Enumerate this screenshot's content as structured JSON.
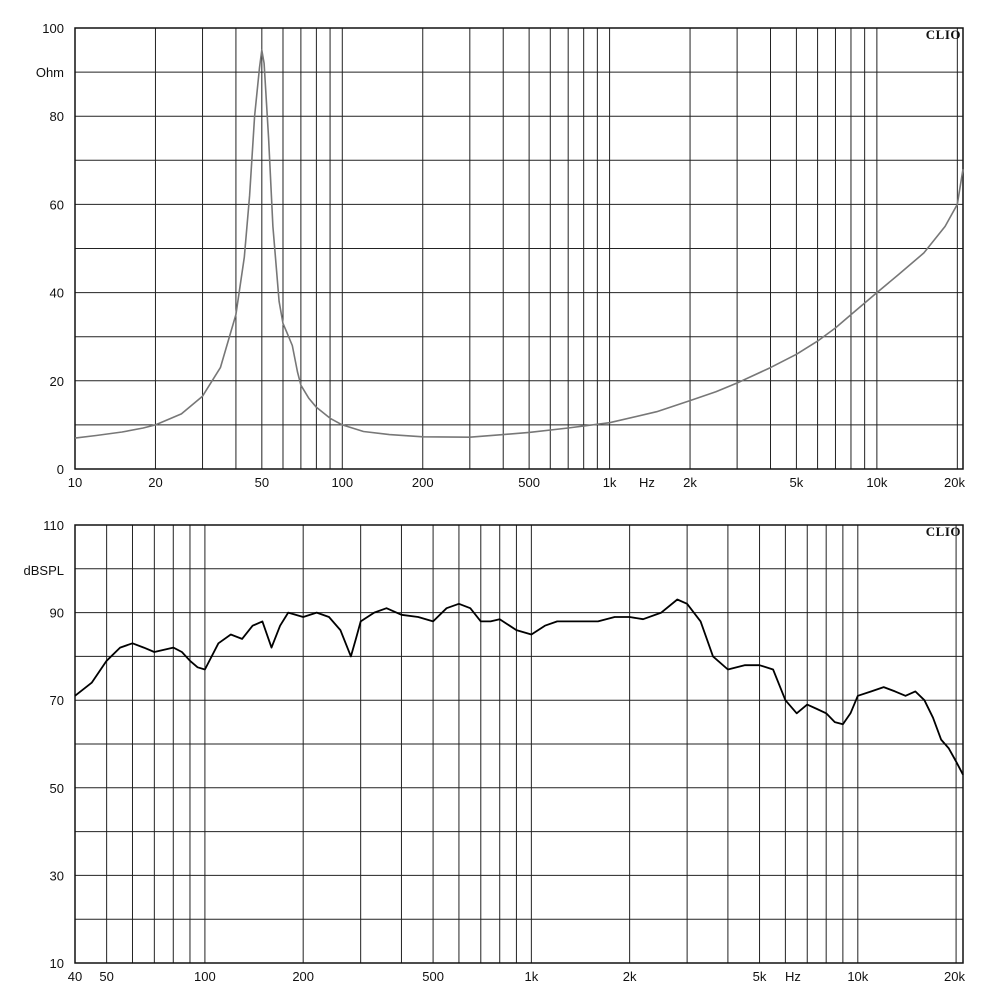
{
  "chart_data": [
    {
      "type": "line",
      "brand": "CLIO",
      "ylabel": "Ohm",
      "xunit": "Hz",
      "xscale": "log",
      "xlim": [
        10,
        21000
      ],
      "ylim": [
        0,
        100
      ],
      "grid": true,
      "y_ticks": [
        "0",
        "20",
        "40",
        "60",
        "80",
        "100"
      ],
      "x_ticks": [
        "10",
        "20",
        "50",
        "100",
        "200",
        "500",
        "1k",
        "2k",
        "5k",
        "10k",
        "20k"
      ],
      "series": [
        {
          "color": "#777777",
          "x": [
            10,
            12,
            15,
            18,
            20,
            25,
            30,
            35,
            40,
            43,
            45,
            47,
            49,
            50,
            51,
            53,
            55,
            58,
            60,
            62,
            65,
            68,
            70,
            75,
            80,
            90,
            100,
            120,
            150,
            200,
            300,
            400,
            500,
            700,
            1000,
            1500,
            2000,
            2500,
            3000,
            4000,
            5000,
            6000,
            7000,
            8000,
            10000,
            12000,
            15000,
            18000,
            20000,
            21000
          ],
          "y": [
            7,
            7.6,
            8.4,
            9.3,
            10,
            12.5,
            16.5,
            23,
            35,
            48,
            62,
            80,
            91,
            95,
            92,
            75,
            55,
            38,
            33,
            31,
            28,
            22,
            19,
            16,
            14,
            11.5,
            10,
            8.5,
            7.8,
            7.3,
            7.2,
            7.8,
            8.3,
            9.3,
            10.5,
            13,
            15.5,
            17.5,
            19.5,
            23,
            26,
            29,
            32,
            35,
            40,
            44,
            49,
            55,
            60,
            68
          ]
        }
      ]
    },
    {
      "type": "line",
      "brand": "CLIO",
      "ylabel": "dBSPL",
      "xunit": "Hz",
      "xscale": "log",
      "xlim": [
        40,
        21000
      ],
      "ylim": [
        10,
        110
      ],
      "grid": true,
      "y_ticks": [
        "10",
        "30",
        "50",
        "70",
        "90",
        "110"
      ],
      "x_ticks": [
        "40",
        "50",
        "100",
        "200",
        "500",
        "1k",
        "2k",
        "5k",
        "10k",
        "20k"
      ],
      "series": [
        {
          "color": "#000000",
          "x": [
            40,
            45,
            50,
            55,
            60,
            65,
            70,
            75,
            80,
            85,
            90,
            95,
            100,
            110,
            120,
            130,
            140,
            150,
            160,
            170,
            180,
            200,
            220,
            240,
            260,
            280,
            290,
            300,
            330,
            360,
            400,
            450,
            500,
            550,
            600,
            650,
            700,
            750,
            800,
            900,
            1000,
            1100,
            1200,
            1400,
            1600,
            1800,
            2000,
            2200,
            2500,
            2800,
            3000,
            3300,
            3600,
            4000,
            4500,
            5000,
            5500,
            6000,
            6500,
            7000,
            7500,
            8000,
            8500,
            9000,
            9500,
            10000,
            11000,
            12000,
            13000,
            14000,
            15000,
            16000,
            17000,
            18000,
            19000,
            20000,
            21000
          ],
          "y": [
            71,
            74,
            79,
            82,
            83,
            82,
            81,
            81.5,
            82,
            81,
            79,
            77.5,
            77,
            83,
            85,
            84,
            87,
            88,
            82,
            87,
            90,
            89,
            90,
            89,
            86,
            80,
            84,
            88,
            90,
            91,
            89.5,
            89,
            88,
            91,
            92,
            91,
            88,
            88,
            88.5,
            86,
            85,
            87,
            88,
            88,
            88,
            89,
            89,
            88.5,
            90,
            93,
            92,
            88,
            80,
            77,
            78,
            78,
            77,
            70,
            67,
            69,
            68,
            67,
            65,
            64.5,
            67,
            71,
            72,
            73,
            72,
            71,
            72,
            70,
            66,
            61,
            59,
            56,
            53
          ]
        }
      ]
    }
  ]
}
